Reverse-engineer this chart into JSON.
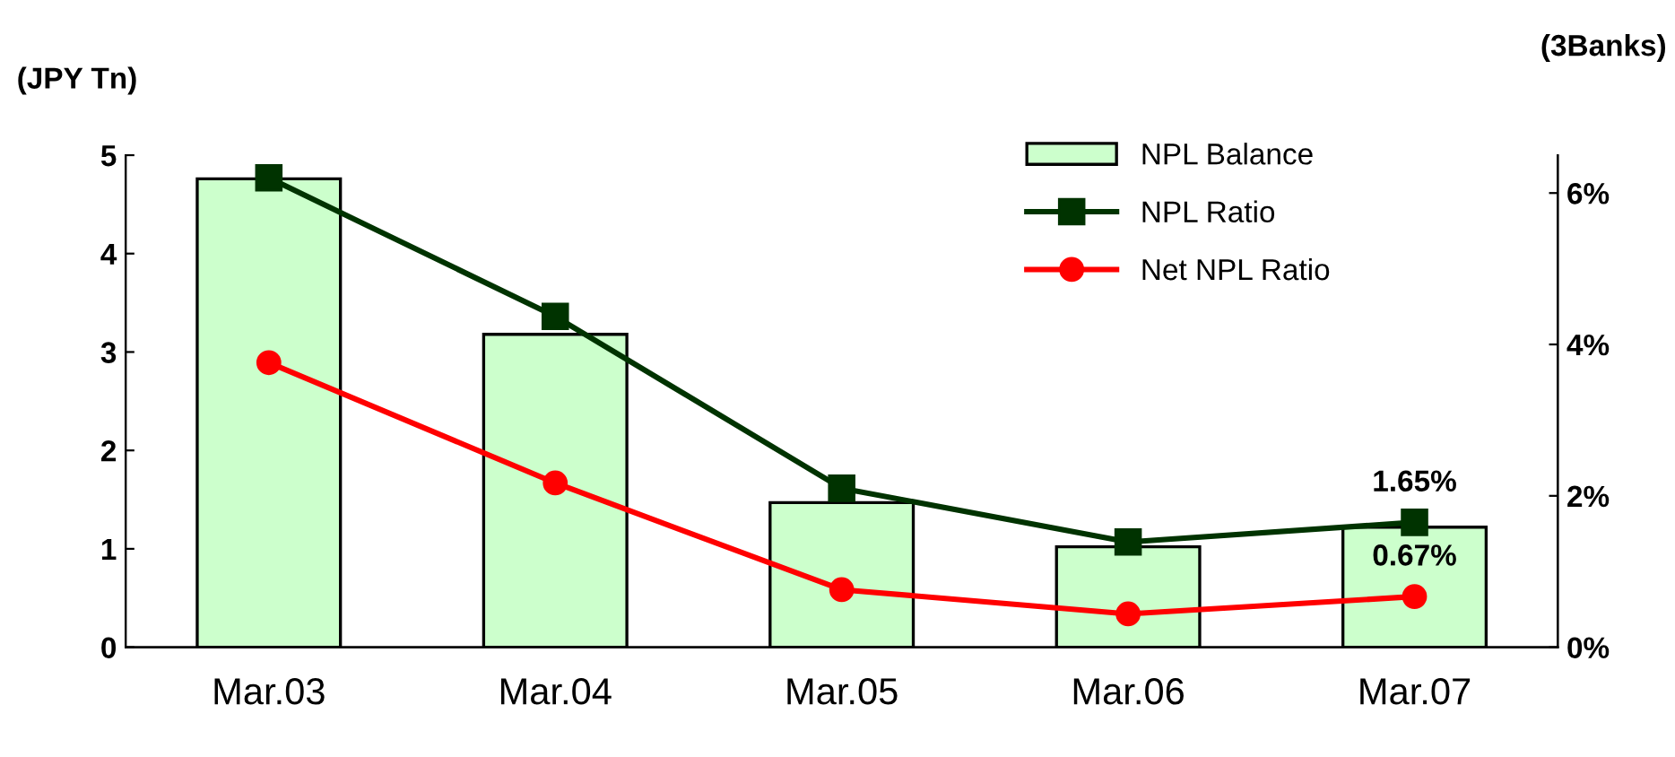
{
  "chart_data": {
    "type": "bar",
    "title": "(3Banks)",
    "ylabel": "(JPY Tn)",
    "categories": [
      "Mar.03",
      "Mar.04",
      "Mar.05",
      "Mar.06",
      "Mar.07"
    ],
    "series": [
      {
        "name": "NPL Balance",
        "color": "#ccffcc",
        "values": [
          4.76,
          3.18,
          1.47,
          1.02,
          1.22
        ]
      },
      {
        "name": "NPL Ratio",
        "type": "line",
        "axis": "y2",
        "color": "#003300",
        "marker": "square",
        "values": [
          6.2,
          4.37,
          2.1,
          1.39,
          1.65
        ],
        "value_labels": [
          null,
          null,
          null,
          null,
          "1.65%"
        ]
      },
      {
        "name": "Net NPL Ratio",
        "type": "line",
        "axis": "y2",
        "color": "#ff0000",
        "marker": "circle",
        "values": [
          3.76,
          2.17,
          0.76,
          0.44,
          0.67
        ],
        "value_labels": [
          null,
          null,
          null,
          null,
          "0.67%"
        ]
      }
    ],
    "ylim": [
      0,
      5
    ],
    "yticks": [
      0,
      1,
      2,
      3,
      4,
      5
    ],
    "y2lim": [
      0,
      6.5
    ],
    "y2ticks": [
      {
        "value": 0,
        "label": "0%"
      },
      {
        "value": 2,
        "label": "2%"
      },
      {
        "value": 4,
        "label": "4%"
      },
      {
        "value": 6,
        "label": "6%"
      }
    ],
    "grid": false,
    "legend": "top right"
  }
}
